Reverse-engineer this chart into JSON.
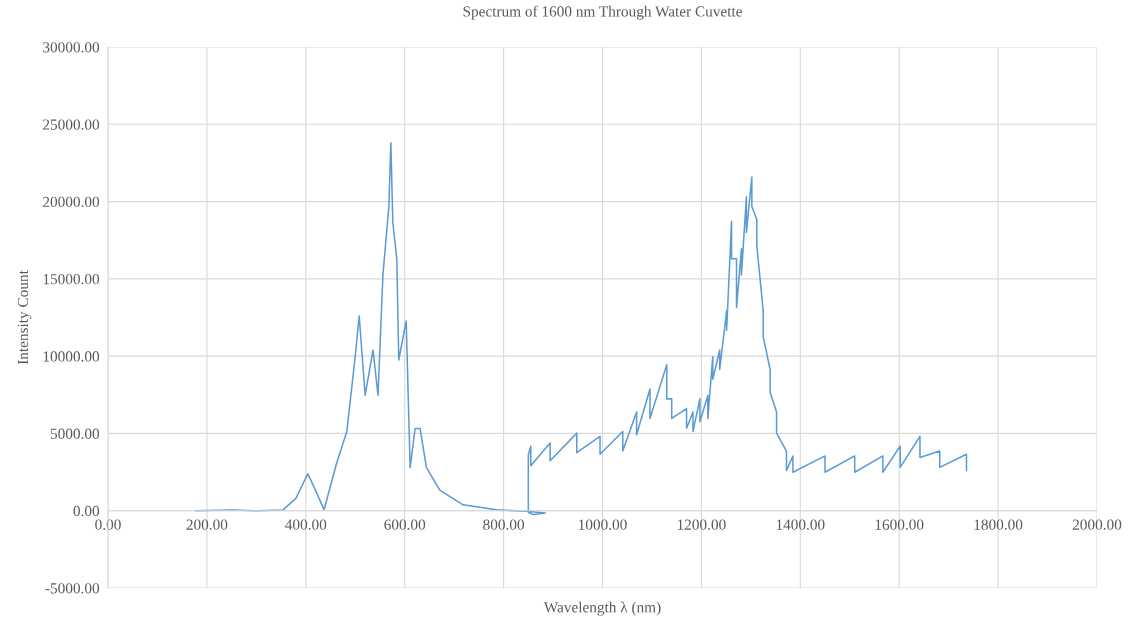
{
  "chart_data": {
    "type": "line",
    "title": "Spectrum of 1600 nm Through Water Cuvette",
    "xlabel": "Wavelength λ (nm)",
    "ylabel": "Intensity Count",
    "xlim": [
      0,
      2000
    ],
    "ylim": [
      -5000,
      30000
    ],
    "xticks": [
      {
        "value": 0,
        "label": "0.00"
      },
      {
        "value": 200,
        "label": "200.00"
      },
      {
        "value": 400,
        "label": "400.00"
      },
      {
        "value": 600,
        "label": "600.00"
      },
      {
        "value": 800,
        "label": "800.00"
      },
      {
        "value": 1000,
        "label": "1000.00"
      },
      {
        "value": 1200,
        "label": "1200.00"
      },
      {
        "value": 1400,
        "label": "1400.00"
      },
      {
        "value": 1600,
        "label": "1600.00"
      },
      {
        "value": 1800,
        "label": "1800.00"
      },
      {
        "value": 2000,
        "label": "2000.00"
      }
    ],
    "yticks": [
      {
        "value": -5000,
        "label": "-5000.00"
      },
      {
        "value": 0,
        "label": "0.00"
      },
      {
        "value": 5000,
        "label": "5000.00"
      },
      {
        "value": 10000,
        "label": "10000.00"
      },
      {
        "value": 15000,
        "label": "15000.00"
      },
      {
        "value": 20000,
        "label": "20000.00"
      },
      {
        "value": 25000,
        "label": "25000.00"
      },
      {
        "value": 30000,
        "label": "30000.00"
      }
    ],
    "grid": true,
    "marker": "none",
    "line_style": "solid",
    "series": [
      {
        "color": "#5b9bd5",
        "x": [
          178,
          250,
          300,
          354,
          380,
          404,
          420,
          437,
          462,
          483,
          500,
          508,
          520,
          536,
          546,
          556,
          568,
          572,
          576,
          584,
          588,
          603,
          611,
          621,
          631,
          644,
          671,
          718,
          786,
          847,
          884,
          860,
          850,
          850,
          855,
          855,
          894,
          894,
          948,
          948,
          995,
          995,
          1041,
          1041,
          1069,
          1069,
          1096,
          1096,
          1130,
          1130,
          1140,
          1140,
          1170,
          1170,
          1183,
          1183,
          1197,
          1197,
          1213,
          1213,
          1223,
          1223,
          1237,
          1237,
          1251,
          1251,
          1261,
          1261,
          1271,
          1271,
          1281,
          1281,
          1291,
          1291,
          1302,
          1302,
          1312,
          1312,
          1325,
          1325,
          1339,
          1339,
          1352,
          1352,
          1372,
          1372,
          1385,
          1385,
          1450,
          1450,
          1510,
          1510,
          1567,
          1567,
          1602,
          1602,
          1642,
          1642,
          1682,
          1682,
          1736,
          1736
        ],
        "values": [
          0,
          50,
          0,
          50,
          800,
          2390,
          1300,
          60,
          3040,
          5130,
          10000,
          12600,
          7470,
          10400,
          7470,
          15260,
          19700,
          23800,
          18630,
          16330,
          9750,
          12280,
          2790,
          5320,
          5320,
          2790,
          1330,
          380,
          60,
          -40,
          -150,
          -250,
          -100,
          3600,
          4177,
          2911,
          4388,
          3228,
          5020,
          3755,
          4810,
          3650,
          5127,
          3861,
          6392,
          4915,
          7869,
          5970,
          9451,
          7236,
          7236,
          5970,
          6603,
          5338,
          6392,
          5127,
          7236,
          5760,
          7447,
          5970,
          9978,
          8502,
          10400,
          9135,
          12932,
          11667,
          18734,
          16308,
          16308,
          13143,
          16940,
          15253,
          20316,
          17996,
          21582,
          19683,
          18840,
          17152,
          12932,
          11245,
          9135,
          7658,
          6392,
          5020,
          3861,
          2595,
          3544,
          2489,
          3544,
          2489,
          3544,
          2489,
          3544,
          2489,
          4177,
          2806,
          4810,
          3439,
          3861,
          2806,
          3650,
          2595
        ]
      }
    ]
  }
}
